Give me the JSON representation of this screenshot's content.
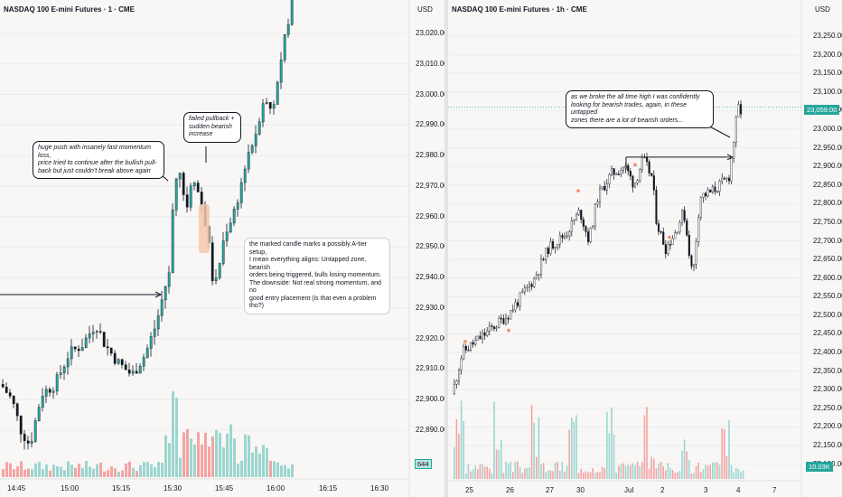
{
  "left_chart": {
    "title": "NASDAQ 100 E-mini Futures · 1 · CME",
    "currency": "USD",
    "price_ticks": [
      "23,020.00",
      "23,010.00",
      "23,000.00",
      "22,990.00",
      "22,980.00",
      "22,970.00",
      "22,960.00",
      "22,950.00",
      "22,940.00",
      "22,930.00",
      "22,920.00",
      "22,910.00",
      "22,900.00",
      "22,890.00"
    ],
    "price_min": 22880,
    "price_max": 23030,
    "time_ticks": [
      "14:45",
      "15:00",
      "15:15",
      "15:30",
      "15:45",
      "16:00",
      "16:15",
      "16:30"
    ],
    "volume_badge": "644",
    "colors": {
      "up": "#26a69a",
      "down": "#ef5350",
      "candle": "#131722",
      "highlight": "#f5c9a8"
    },
    "annotations": {
      "push_note": "huge push with insanely fast momentum loss,\nprice tried to continue after the bullish pull-\nback but just couldn't break above again",
      "pullback_note": "failed pullback +\nsudden bearish\nincrease",
      "candle_note": "the marked candle marks a possibly A-tier setup,\nI mean everything aligns: Untapped zone, bearish\norders being triggered, bulls losing momentum.\nThe downside: Not real strong momentum, and no\ngood entry placement (is that even a problem tho?)"
    }
  },
  "right_chart": {
    "title": "NASDAQ 100 E-mini Futures · 1h · CME",
    "currency": "USD",
    "price_ticks": [
      "23,250.00",
      "23,200.00",
      "23,150.00",
      "23,100.00",
      "23,050.00",
      "23,000.00",
      "22,950.00",
      "22,900.00",
      "22,850.00",
      "22,800.00",
      "22,750.00",
      "22,700.00",
      "22,650.00",
      "22,600.00",
      "22,550.00",
      "22,500.00",
      "22,450.00",
      "22,400.00",
      "22,350.00",
      "22,300.00",
      "22,250.00",
      "22,200.00",
      "22,150.00",
      "22,100.00"
    ],
    "price_min": 22075,
    "price_max": 23300,
    "current_price": "23,059.00",
    "time_ticks": [
      "25",
      "26",
      "27",
      "30",
      "Jul",
      "2",
      "3",
      "4",
      "7"
    ],
    "volume_badge": "10.03K",
    "annotations": {
      "ath_note": "as we broke the all time high I was confidently\nlooking for bearish trades, again, in these untapped\nzones there are a lot of bearish orders..."
    }
  }
}
